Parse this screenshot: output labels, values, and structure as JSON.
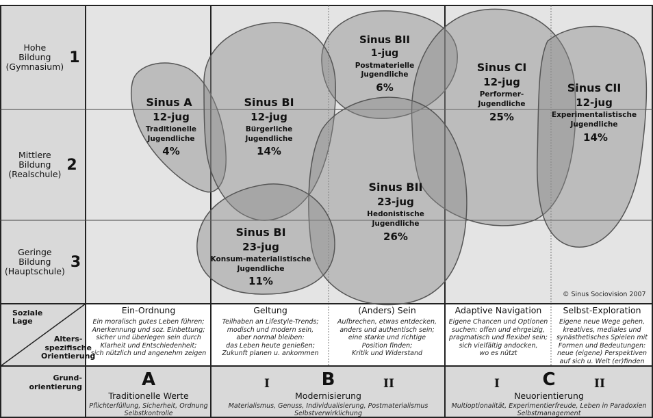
{
  "rows": [
    {
      "label": "Hohe\nBildung\n(Gymnasium)",
      "number": "1"
    },
    {
      "label": "Mittlere\nBildung\n(Realschule)",
      "number": "2"
    },
    {
      "label": "Geringe\nBildung\n(Hauptschule)",
      "number": "3"
    }
  ],
  "corner": {
    "top": "Soziale\nLage",
    "bottom": "Alters-\nspezifische\nOrientierung"
  },
  "grund_label": "Grund-\norientierung",
  "copyright": "© Sinus Sociovision 2007",
  "milieus": [
    {
      "name": "Sinus BII",
      "age": "1-jug",
      "desc": "Postmaterielle\nJugendliche",
      "pct": "6%"
    },
    {
      "name": "Sinus CI",
      "age": "12-jug",
      "desc": "Performer-\nJugendliche",
      "pct": "25%"
    },
    {
      "name": "Sinus CII",
      "age": "12-jug",
      "desc": "Experimentalistische\nJugendliche",
      "pct": "14%"
    },
    {
      "name": "Sinus A",
      "age": "12-jug",
      "desc": "Traditionelle\nJugendliche",
      "pct": "4%"
    },
    {
      "name": "Sinus BI",
      "age": "12-jug",
      "desc": "Bürgerliche\nJugendliche",
      "pct": "14%"
    },
    {
      "name": "Sinus BII",
      "age": "23-jug",
      "desc": "Hedonistische\nJugendliche",
      "pct": "26%"
    },
    {
      "name": "Sinus BI",
      "age": "23-jug",
      "desc": "Konsum-materialistische\nJugendliche",
      "pct": "11%"
    }
  ],
  "orientations": [
    {
      "title": "Ein-Ordnung",
      "desc": "Ein moralisch gutes Leben führen;\nAnerkennung und soz. Einbettung;\nsicher und überlegen sein durch\nKlarheit und Entschiedenheit;\nsich nützlich und angenehm zeigen"
    },
    {
      "title": "Geltung",
      "desc": "Teilhaben an Lifestyle-Trends;\nmodisch und modern sein,\naber normal bleiben:\ndas Leben heute genießen;\nZukunft planen u. ankommen"
    },
    {
      "title": "(Anders) Sein",
      "desc": "Aufbrechen, etwas entdecken,\nanders und authentisch sein;\neine starke und richtige\nPosition finden;\nKritik und Widerstand"
    },
    {
      "title": "Adaptive Navigation",
      "desc": "Eigene Chancen und Optionen\nsuchen: offen und ehrgeizig,\npragmatisch und flexibel sein;\nsich vielfältig andocken,\nwo es nützt"
    },
    {
      "title": "Selbst-Exploration",
      "desc": "Eigene neue Wege gehen,\nkreatives, mediales und\nsynästhetisches Spielen mit\nFormen und Bedeutungen:\nneue (eigene) Perspektiven\nauf sich u. Welt (er)finden"
    }
  ],
  "grund": [
    {
      "letter": "A",
      "title": "Traditionelle Werte",
      "desc": "Pflichterfüllung, Sicherheit, Ordnung\nSelbstkontrolle"
    },
    {
      "letter": "B",
      "title": "Modernisierung",
      "desc": "Materialismus, Genuss, Individualisierung, Postmaterialismus\nSelbstverwirklichung",
      "roman_left": "I",
      "roman_right": "II"
    },
    {
      "letter": "C",
      "title": "Neuorientierung",
      "desc": "Multioptionalität, Experimentierfreude, Leben in Paradoxien\nSelbstmanagement",
      "roman_left": "I",
      "roman_right": "II"
    }
  ],
  "colors": {
    "grid_bg": "#e4e4e4",
    "label_bg": "#d9d9d9",
    "blob_fill": "#8c8c8c",
    "blob_stroke": "#555555"
  }
}
